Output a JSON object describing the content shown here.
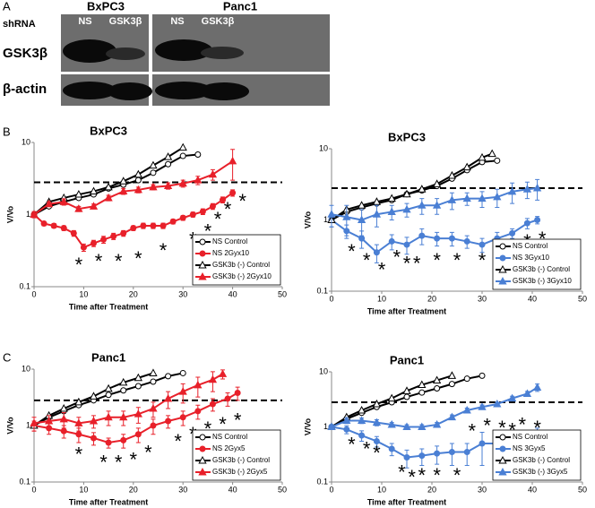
{
  "figure_labels": [
    "A",
    "B",
    "C"
  ],
  "blot": {
    "row_header": "shRNA",
    "groups": [
      "BxPC3",
      "Panc1"
    ],
    "lanes": [
      "NS",
      "GSK3β",
      "NS",
      "GSK3β"
    ],
    "rows": [
      "GSK3β",
      "β-actin"
    ]
  },
  "chart_data": [
    {
      "type": "line",
      "title": "BxPC3",
      "xlabel": "Time after Treatment",
      "ylabel": "V/Vo",
      "log_y": true,
      "xlim": [
        0,
        50
      ],
      "xticks": [
        0,
        10,
        20,
        30,
        40,
        50
      ],
      "ylim": [
        0.1,
        10
      ],
      "yticks": [
        0.1,
        1,
        10
      ],
      "reference_line": 2.8,
      "legend": "lower right",
      "series": [
        {
          "name": "NS Control",
          "color": "#000000",
          "marker": "circle",
          "filled": false,
          "x": [
            0,
            3,
            6,
            9,
            12,
            15,
            18,
            21,
            24,
            27,
            30,
            33
          ],
          "values": [
            1,
            1.3,
            1.5,
            1.7,
            1.9,
            2.3,
            2.6,
            3.0,
            3.8,
            5.0,
            6.5,
            6.8
          ]
        },
        {
          "name": "NS 2Gyx10",
          "color": "#e8202a",
          "marker": "circle",
          "filled": true,
          "x": [
            0,
            2,
            4,
            6,
            8,
            10,
            12,
            14,
            16,
            18,
            20,
            22,
            24,
            26,
            28,
            30,
            32,
            34,
            36,
            38,
            40
          ],
          "values": [
            1,
            0.75,
            0.7,
            0.65,
            0.55,
            0.35,
            0.4,
            0.45,
            0.5,
            0.55,
            0.65,
            0.7,
            0.7,
            0.7,
            0.8,
            0.9,
            1.0,
            1.1,
            1.3,
            1.6,
            2.0
          ],
          "errors": [
            0.05,
            0.05,
            0.05,
            0.05,
            0.05,
            0.04,
            0.04,
            0.05,
            0.05,
            0.05,
            0.05,
            0.06,
            0.06,
            0.06,
            0.06,
            0.07,
            0.08,
            0.1,
            0.12,
            0.15,
            0.2
          ]
        },
        {
          "name": "GSK3b (-) Control",
          "color": "#000000",
          "marker": "triangle",
          "filled": false,
          "x": [
            0,
            3,
            6,
            9,
            12,
            15,
            18,
            21,
            24,
            27,
            30
          ],
          "values": [
            1,
            1.5,
            1.7,
            1.9,
            2.1,
            2.4,
            2.9,
            3.6,
            4.8,
            6.3,
            8.5
          ]
        },
        {
          "name": "GSK3b (-) 2Gyx10",
          "color": "#e8202a",
          "marker": "triangle",
          "filled": true,
          "x": [
            0,
            3,
            6,
            9,
            12,
            15,
            18,
            21,
            24,
            27,
            30,
            33,
            36,
            40
          ],
          "values": [
            1,
            1.4,
            1.5,
            1.2,
            1.3,
            1.7,
            2.1,
            2.2,
            2.4,
            2.5,
            2.7,
            3.0,
            3.6,
            5.5
          ],
          "errors": [
            0.1,
            0.1,
            0.15,
            0.1,
            0.1,
            0.15,
            0.2,
            0.2,
            0.2,
            0.25,
            0.3,
            0.4,
            0.6,
            2.5
          ]
        }
      ],
      "annotations": [
        {
          "text": "*",
          "x": 9,
          "y": 0.22
        },
        {
          "text": "*",
          "x": 13,
          "y": 0.25
        },
        {
          "text": "*",
          "x": 17,
          "y": 0.25
        },
        {
          "text": "*",
          "x": 21,
          "y": 0.27
        },
        {
          "text": "*",
          "x": 26,
          "y": 0.35
        },
        {
          "text": "*",
          "x": 32,
          "y": 0.5
        },
        {
          "text": "*",
          "x": 35,
          "y": 0.65
        },
        {
          "text": "*",
          "x": 37,
          "y": 0.95
        },
        {
          "text": "*",
          "x": 39,
          "y": 1.3
        },
        {
          "text": "*",
          "x": 42,
          "y": 1.7
        }
      ]
    },
    {
      "type": "line",
      "title": "BxPC3",
      "xlabel": "Time after Treatment",
      "ylabel": "V/Vo",
      "log_y": true,
      "xlim": [
        0,
        50
      ],
      "xticks": [
        0,
        10,
        20,
        30,
        40,
        50
      ],
      "ylim": [
        0.1,
        10
      ],
      "yticks": [
        0.1,
        1,
        10
      ],
      "reference_line": 2.8,
      "legend": "lower right",
      "series": [
        {
          "name": "NS Control",
          "color": "#000000",
          "marker": "circle",
          "filled": false,
          "x": [
            0,
            3,
            6,
            9,
            12,
            15,
            18,
            21,
            24,
            27,
            30,
            33
          ],
          "values": [
            1,
            1.3,
            1.5,
            1.7,
            1.9,
            2.3,
            2.6,
            3.0,
            3.8,
            5.0,
            6.5,
            6.8
          ]
        },
        {
          "name": "NS 3Gyx10",
          "color": "#4a7fd4",
          "marker": "circle",
          "filled": true,
          "x": [
            0,
            3,
            6,
            9,
            12,
            15,
            18,
            21,
            24,
            27,
            30,
            33,
            36,
            39,
            41
          ],
          "values": [
            1,
            0.7,
            0.55,
            0.35,
            0.5,
            0.45,
            0.6,
            0.55,
            0.55,
            0.5,
            0.45,
            0.55,
            0.65,
            0.9,
            1.0
          ],
          "errors": [
            0.2,
            0.15,
            0.15,
            0.1,
            0.12,
            0.12,
            0.15,
            0.12,
            0.12,
            0.1,
            0.1,
            0.12,
            0.1,
            0.15,
            0.12
          ]
        },
        {
          "name": "GSK3b (-) Control",
          "color": "#000000",
          "marker": "triangle",
          "filled": false,
          "x": [
            0,
            3,
            6,
            9,
            12,
            15,
            18,
            21,
            24,
            27,
            30,
            32
          ],
          "values": [
            1,
            1.4,
            1.6,
            1.8,
            2.0,
            2.3,
            2.7,
            3.2,
            4.2,
            5.5,
            7.5,
            8.5
          ]
        },
        {
          "name": "GSK3b (-) 3Gyx10",
          "color": "#4a7fd4",
          "marker": "triangle",
          "filled": true,
          "x": [
            0,
            3,
            6,
            9,
            12,
            15,
            18,
            21,
            24,
            27,
            30,
            33,
            36,
            39,
            41
          ],
          "values": [
            1.2,
            1.1,
            1.0,
            1.2,
            1.3,
            1.4,
            1.6,
            1.6,
            1.9,
            2.0,
            2.0,
            2.1,
            2.5,
            2.7,
            2.8
          ],
          "errors": [
            0.4,
            0.5,
            0.4,
            0.4,
            0.3,
            0.3,
            0.4,
            0.4,
            0.5,
            0.4,
            0.5,
            0.6,
            0.8,
            0.7,
            0.9
          ]
        }
      ],
      "annotations": [
        {
          "text": "*",
          "x": 4,
          "y": 0.4
        },
        {
          "text": "*",
          "x": 7,
          "y": 0.3
        },
        {
          "text": "*",
          "x": 10,
          "y": 0.22
        },
        {
          "text": "*",
          "x": 13,
          "y": 0.33
        },
        {
          "text": "*",
          "x": 15,
          "y": 0.27
        },
        {
          "text": "*",
          "x": 17,
          "y": 0.27
        },
        {
          "text": "*",
          "x": 21,
          "y": 0.3
        },
        {
          "text": "*",
          "x": 25,
          "y": 0.3
        },
        {
          "text": "*",
          "x": 30,
          "y": 0.3
        },
        {
          "text": "*",
          "x": 34,
          "y": 0.42
        },
        {
          "text": "*",
          "x": 36,
          "y": 0.38
        },
        {
          "text": "*",
          "x": 39,
          "y": 0.55
        },
        {
          "text": "*",
          "x": 42,
          "y": 0.6
        }
      ]
    },
    {
      "type": "line",
      "title": "Panc1",
      "xlabel": "Time after Treatment",
      "ylabel": "V/Vo",
      "log_y": true,
      "xlim": [
        0,
        50
      ],
      "xticks": [
        0,
        10,
        20,
        30,
        40,
        50
      ],
      "ylim": [
        0.1,
        10
      ],
      "yticks": [
        0.1,
        1,
        10
      ],
      "reference_line": 2.8,
      "legend": "lower right",
      "series": [
        {
          "name": "NS Control",
          "color": "#000000",
          "marker": "circle",
          "filled": false,
          "x": [
            0,
            3,
            6,
            9,
            12,
            15,
            18,
            21,
            24,
            27,
            30
          ],
          "values": [
            1,
            1.4,
            1.8,
            2.3,
            2.8,
            3.5,
            4.2,
            5.0,
            6.0,
            7.5,
            8.5
          ]
        },
        {
          "name": "NS 2Gyx5",
          "color": "#e8202a",
          "marker": "circle",
          "filled": true,
          "x": [
            0,
            3,
            6,
            9,
            12,
            15,
            18,
            21,
            24,
            27,
            30,
            33,
            36,
            39,
            41
          ],
          "values": [
            1,
            0.9,
            0.8,
            0.7,
            0.6,
            0.5,
            0.55,
            0.7,
            1.0,
            1.2,
            1.4,
            1.8,
            2.4,
            3.0,
            3.8
          ],
          "errors": [
            0.2,
            0.2,
            0.2,
            0.2,
            0.15,
            0.1,
            0.15,
            0.2,
            0.3,
            0.3,
            0.4,
            0.5,
            0.6,
            0.8,
            1.0
          ]
        },
        {
          "name": "GSK3b (-) Control",
          "color": "#000000",
          "marker": "triangle",
          "filled": false,
          "x": [
            0,
            3,
            6,
            9,
            12,
            15,
            18,
            21,
            24
          ],
          "values": [
            1,
            1.5,
            2.0,
            2.6,
            3.3,
            4.5,
            5.8,
            7.0,
            8.5
          ]
        },
        {
          "name": "GSK3b (-) 2Gyx5",
          "color": "#e8202a",
          "marker": "triangle",
          "filled": true,
          "x": [
            0,
            3,
            6,
            9,
            12,
            15,
            18,
            21,
            24,
            27,
            30,
            33,
            36,
            38
          ],
          "values": [
            1.1,
            1.2,
            1.3,
            1.1,
            1.2,
            1.4,
            1.4,
            1.6,
            2.0,
            3.0,
            4.0,
            5.2,
            6.5,
            8.2
          ],
          "errors": [
            0.3,
            0.3,
            0.4,
            0.3,
            0.3,
            0.4,
            0.4,
            0.5,
            0.6,
            1.0,
            1.5,
            2.0,
            2.5,
            1.5
          ]
        }
      ],
      "annotations": [
        {
          "text": "*",
          "x": 9,
          "y": 0.35
        },
        {
          "text": "*",
          "x": 14,
          "y": 0.25
        },
        {
          "text": "*",
          "x": 17,
          "y": 0.25
        },
        {
          "text": "*",
          "x": 20,
          "y": 0.28
        },
        {
          "text": "*",
          "x": 23,
          "y": 0.38
        },
        {
          "text": "*",
          "x": 29,
          "y": 0.6
        },
        {
          "text": "*",
          "x": 32,
          "y": 0.8
        },
        {
          "text": "*",
          "x": 35,
          "y": 1.0
        },
        {
          "text": "*",
          "x": 38,
          "y": 1.2
        },
        {
          "text": "*",
          "x": 41,
          "y": 1.4
        }
      ]
    },
    {
      "type": "line",
      "title": "Panc1",
      "xlabel": "Time after Treatment",
      "ylabel": "V/Vo",
      "log_y": true,
      "xlim": [
        0,
        50
      ],
      "xticks": [
        0,
        10,
        20,
        30,
        40,
        50
      ],
      "ylim": [
        0.1,
        10
      ],
      "yticks": [
        0.1,
        1,
        10
      ],
      "reference_line": 2.8,
      "legend": "lower right",
      "series": [
        {
          "name": "NS Control",
          "color": "#000000",
          "marker": "circle",
          "filled": false,
          "x": [
            0,
            3,
            6,
            9,
            12,
            15,
            18,
            21,
            24,
            27,
            30
          ],
          "values": [
            1,
            1.4,
            1.8,
            2.3,
            2.8,
            3.5,
            4.2,
            5.0,
            6.0,
            7.5,
            8.5
          ]
        },
        {
          "name": "NS 3Gyx5",
          "color": "#4a7fd4",
          "marker": "circle",
          "filled": true,
          "x": [
            0,
            3,
            6,
            9,
            12,
            15,
            18,
            21,
            24,
            27,
            30,
            33,
            36,
            39,
            41
          ],
          "values": [
            1,
            0.9,
            0.7,
            0.55,
            0.4,
            0.28,
            0.3,
            0.33,
            0.35,
            0.35,
            0.5,
            0.5,
            0.5,
            0.55,
            0.65
          ],
          "errors": [
            0.1,
            0.15,
            0.15,
            0.12,
            0.1,
            0.1,
            0.1,
            0.12,
            0.15,
            0.15,
            0.3,
            0.3,
            0.3,
            0.3,
            0.3
          ]
        },
        {
          "name": "GSK3b (-) Control",
          "color": "#000000",
          "marker": "triangle",
          "filled": false,
          "x": [
            0,
            3,
            6,
            9,
            12,
            15,
            18,
            21,
            24
          ],
          "values": [
            1,
            1.5,
            2.0,
            2.6,
            3.3,
            4.5,
            5.8,
            7.0,
            8.5
          ]
        },
        {
          "name": "GSK3b (-) 3Gyx5",
          "color": "#4a7fd4",
          "marker": "triangle",
          "filled": true,
          "x": [
            0,
            3,
            6,
            9,
            12,
            15,
            18,
            21,
            24,
            27,
            30,
            33,
            36,
            39,
            41
          ],
          "values": [
            1,
            1.3,
            1.3,
            1.2,
            1.1,
            1.0,
            1.0,
            1.1,
            1.5,
            2.0,
            2.3,
            2.6,
            3.3,
            4.0,
            5.2
          ],
          "errors": [
            0.1,
            0.15,
            0.15,
            0.15,
            0.1,
            0.1,
            0.1,
            0.1,
            0.15,
            0.2,
            0.2,
            0.2,
            0.3,
            0.4,
            0.8
          ]
        }
      ],
      "annotations": [
        {
          "text": "*",
          "x": 4,
          "y": 0.55
        },
        {
          "text": "*",
          "x": 7,
          "y": 0.45
        },
        {
          "text": "*",
          "x": 9,
          "y": 0.38
        },
        {
          "text": "*",
          "x": 14,
          "y": 0.17
        },
        {
          "text": "*",
          "x": 16,
          "y": 0.14
        },
        {
          "text": "*",
          "x": 18,
          "y": 0.15
        },
        {
          "text": "*",
          "x": 21,
          "y": 0.15
        },
        {
          "text": "*",
          "x": 25,
          "y": 0.15
        },
        {
          "text": "*",
          "x": 28,
          "y": 0.95
        },
        {
          "text": "*",
          "x": 31,
          "y": 1.2
        },
        {
          "text": "*",
          "x": 34,
          "y": 1.1
        },
        {
          "text": "*",
          "x": 36,
          "y": 1.0
        },
        {
          "text": "*",
          "x": 38,
          "y": 1.25
        },
        {
          "text": "*",
          "x": 41,
          "y": 1.1
        }
      ]
    }
  ]
}
